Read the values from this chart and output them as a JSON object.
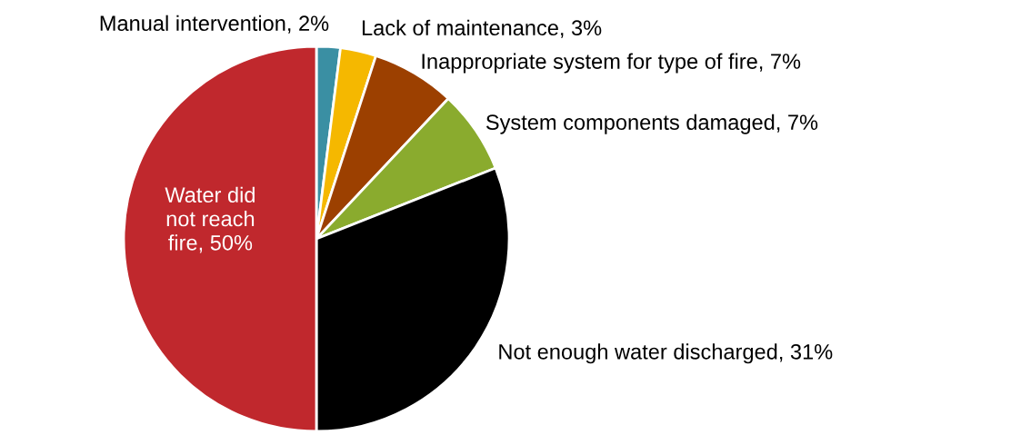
{
  "chart_data": {
    "type": "pie",
    "categories": [
      "Manual intervention",
      "Lack of maintenance",
      "Inappropriate system for type of fire",
      "System components damaged",
      "Not enough water discharged",
      "Water did not reach fire"
    ],
    "values": [
      2,
      3,
      7,
      7,
      31,
      50
    ],
    "value_labels": [
      "2%",
      "3%",
      "7%",
      "7%",
      "31%",
      "50%"
    ],
    "colors": [
      "#3a8fa3",
      "#f5b800",
      "#9c4000",
      "#8aab2e",
      "#000000",
      "#c0282d"
    ]
  }
}
